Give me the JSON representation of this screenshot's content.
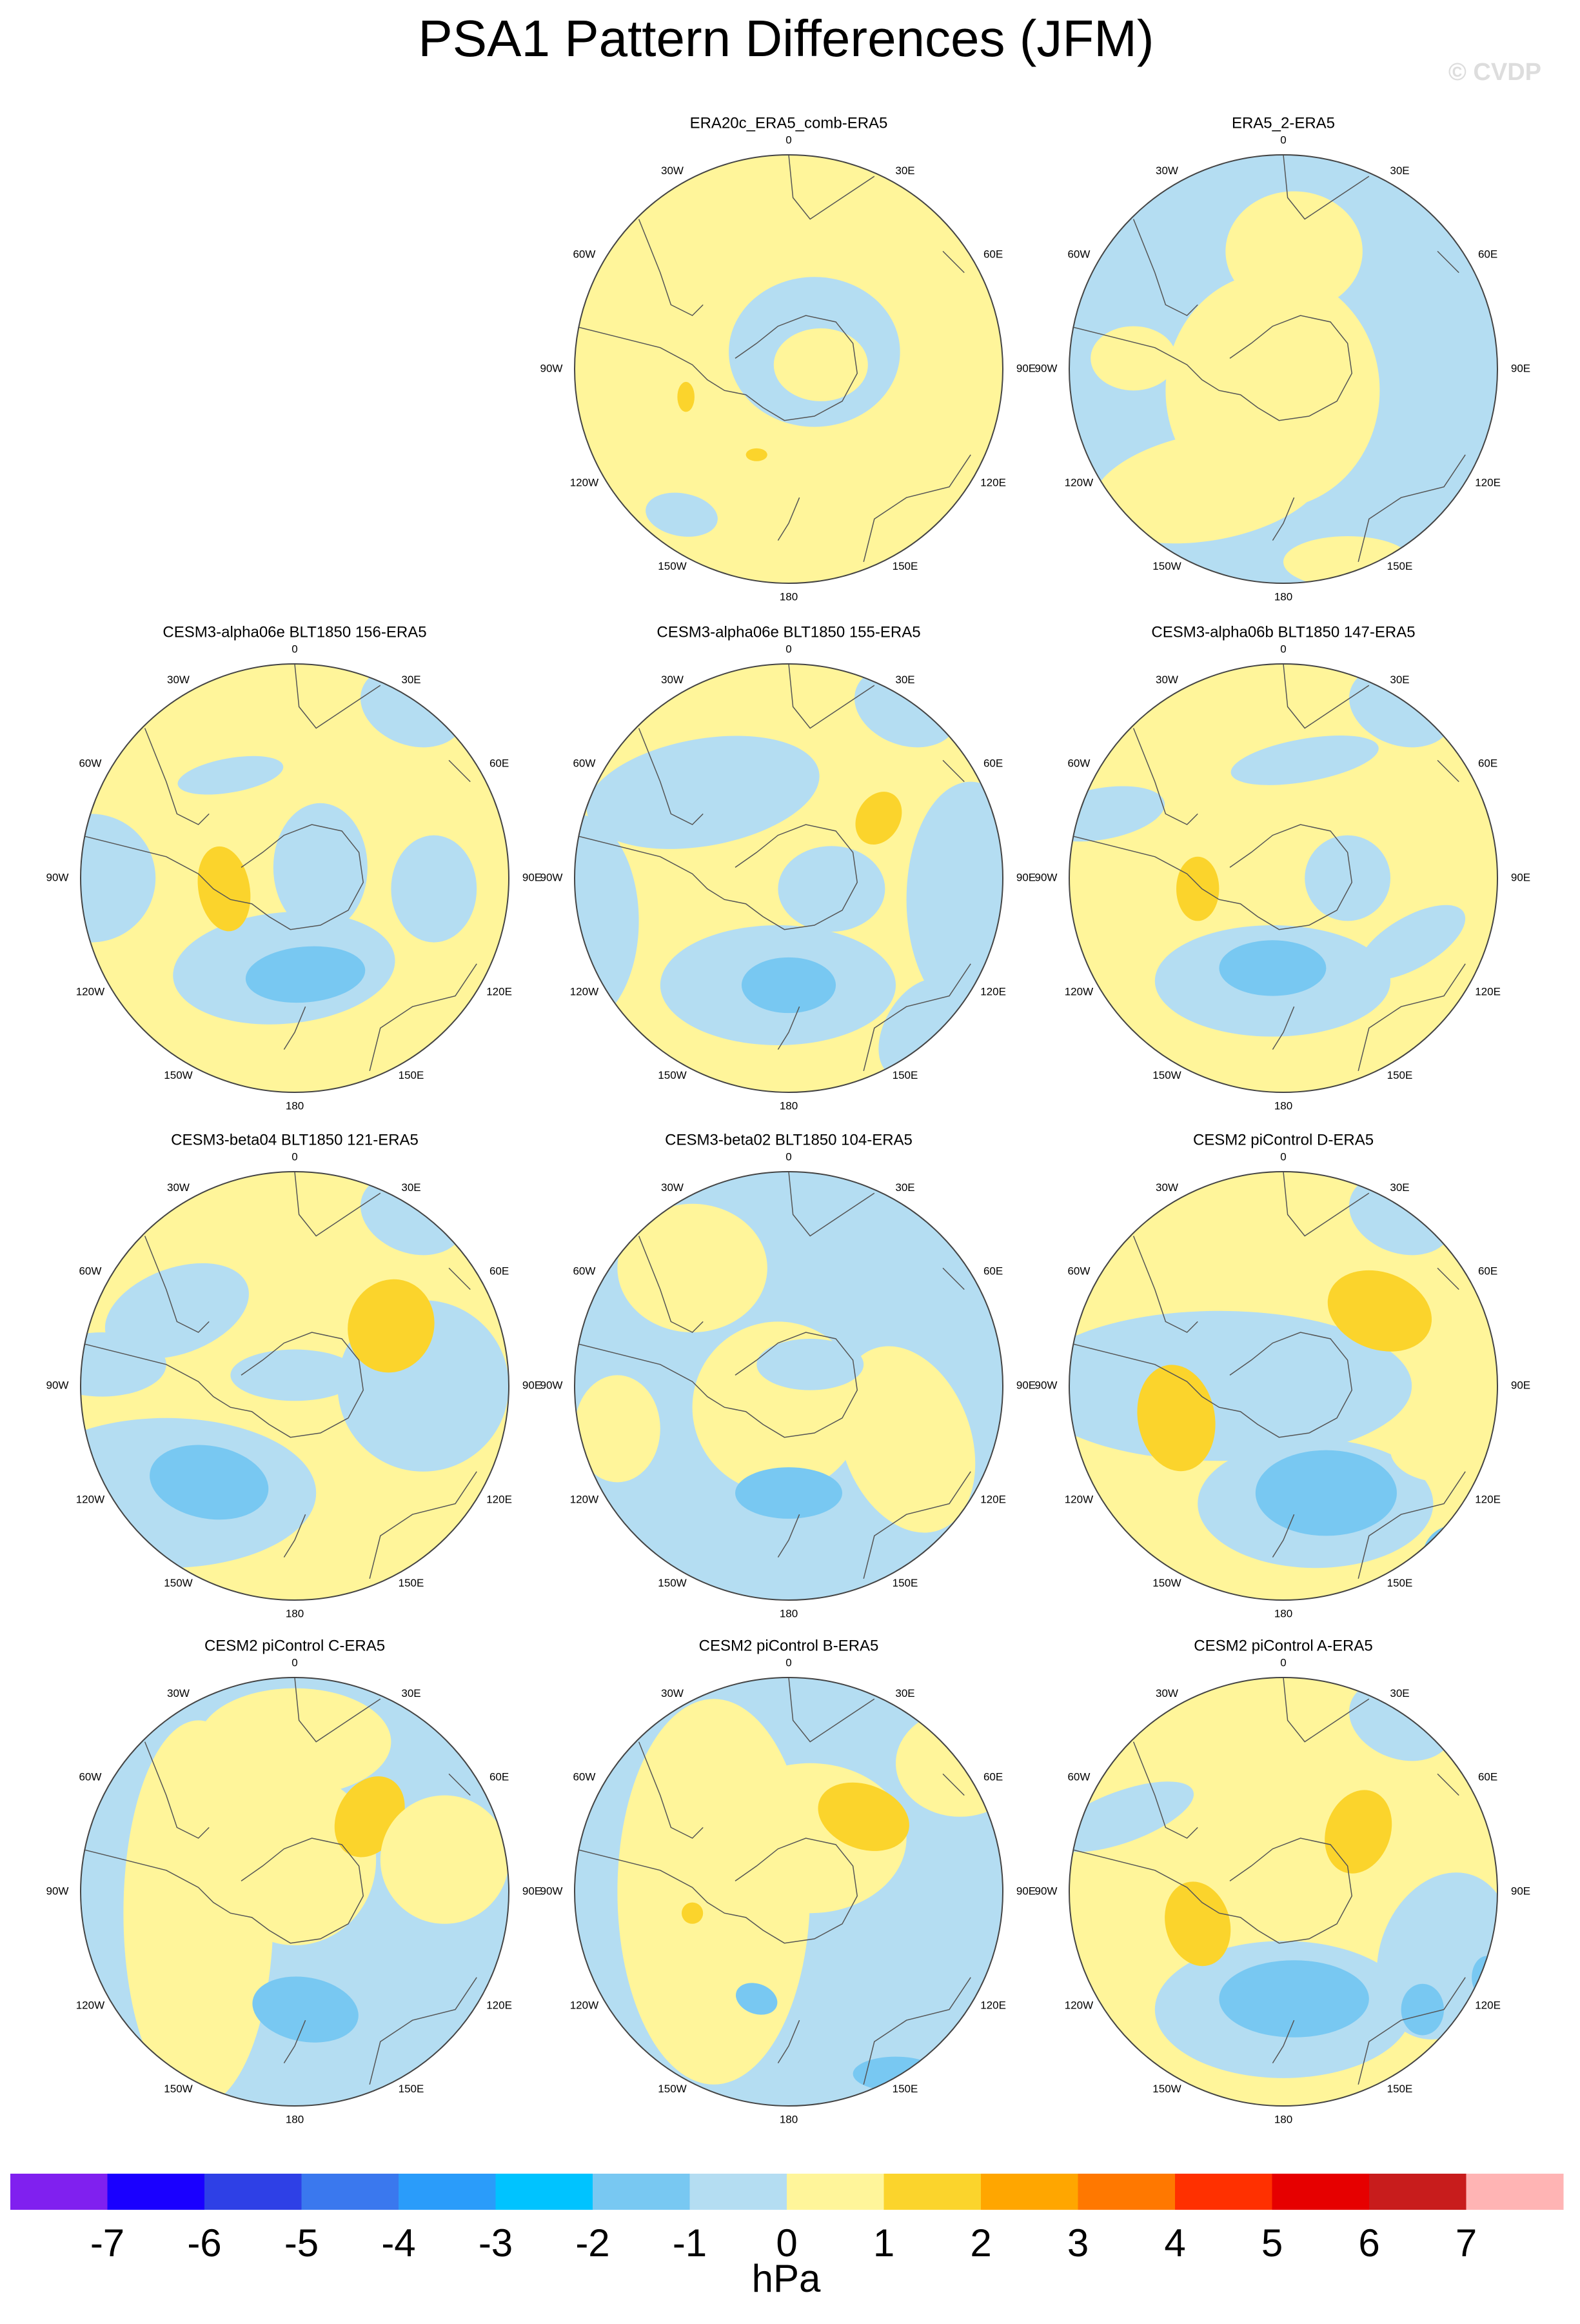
{
  "title": "PSA1 Pattern Differences (JFM)",
  "watermark": "© CVDP",
  "panels": [
    {
      "title": "ERA20c_ERA5_comb-ERA5"
    },
    {
      "title": "ERA5_2-ERA5"
    },
    {
      "title": "CESM3-alpha06e BLT1850 156-ERA5"
    },
    {
      "title": "CESM3-alpha06e BLT1850 155-ERA5"
    },
    {
      "title": "CESM3-alpha06b BLT1850 147-ERA5"
    },
    {
      "title": "CESM3-beta04 BLT1850 121-ERA5"
    },
    {
      "title": "CESM3-beta02 BLT1850 104-ERA5"
    },
    {
      "title": "CESM2 piControl D-ERA5"
    },
    {
      "title": "CESM2 piControl C-ERA5"
    },
    {
      "title": "CESM2 piControl B-ERA5"
    },
    {
      "title": "CESM2 piControl A-ERA5"
    }
  ],
  "longitude_labels": [
    "0",
    "30E",
    "60E",
    "90E",
    "120E",
    "150E",
    "180",
    "150W",
    "120W",
    "90W",
    "60W",
    "30W"
  ],
  "colorbar": {
    "levels": [
      -7,
      -6,
      -5,
      -4,
      -3,
      -2,
      -1,
      0,
      1,
      2,
      3,
      4,
      5,
      6,
      7
    ],
    "colors": [
      "#8020ef",
      "#1a00ff",
      "#2e40e6",
      "#3a78ee",
      "#2a9cfa",
      "#00c3ff",
      "#78c8f2",
      "#b4ddf2",
      "#fff59a",
      "#fbd42c",
      "#ffa600",
      "#ff7800",
      "#ff3000",
      "#e60000",
      "#c81c1c",
      "#ffb4b4"
    ],
    "label": "hPa"
  }
}
